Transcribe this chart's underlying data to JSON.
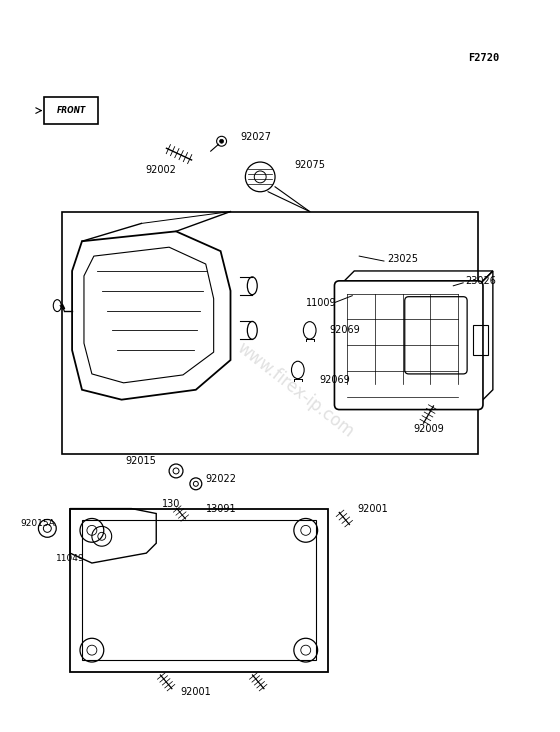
{
  "title": "F2720",
  "background_color": "#ffffff",
  "watermark": "www.firex-ip.com",
  "line_color": "#000000",
  "text_color": "#000000",
  "watermark_color": "#c8c8c8",
  "fig_width": 5.6,
  "fig_height": 7.32,
  "dpi": 100,
  "label_fontsize": 7.0,
  "title_fontsize": 7.5
}
